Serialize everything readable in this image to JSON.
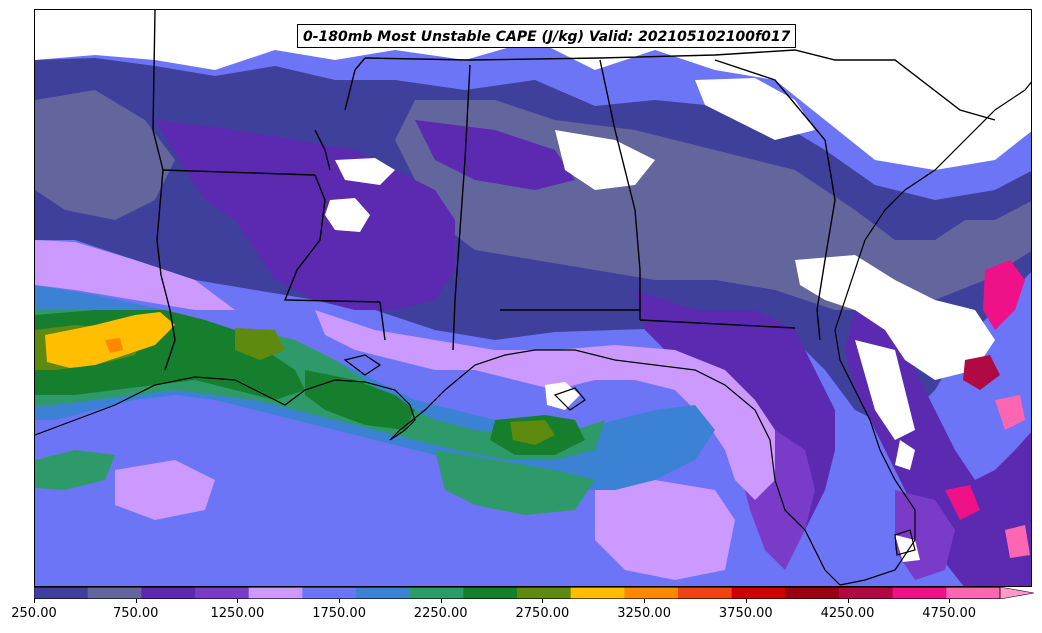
{
  "map": {
    "title": "0-180mb Most Unstable CAPE (J/kg) Valid: 202105102100f017",
    "region": "Southeastern United States and Gulf of Mexico"
  },
  "colorbar": {
    "ticks": [
      "250.00",
      "750.00",
      "1250.00",
      "1750.00",
      "2250.00",
      "2750.00",
      "3250.00",
      "3750.00",
      "4250.00",
      "4750.00"
    ],
    "tick_values": [
      250,
      750,
      1250,
      1750,
      2250,
      2750,
      3250,
      3750,
      4250,
      4750
    ],
    "range": [
      250,
      5000
    ],
    "extend": "max",
    "colors": [
      "#3f3f9c",
      "#63659d",
      "#5b2ab0",
      "#7a3cc8",
      "#cc99ff",
      "#6b75f5",
      "#3c82d4",
      "#2e9a6a",
      "#167f2e",
      "#5e8a10",
      "#ffbf00",
      "#ff8800",
      "#ee4411",
      "#cc0000",
      "#990011",
      "#b00a44",
      "#ee1188",
      "#ff66b2",
      "#ff99cc"
    ]
  },
  "chart_data": {
    "type": "heatmap",
    "title": "0-180mb Most Unstable CAPE (J/kg) Valid: 202105102100f017",
    "colorbar_ticks": [
      250,
      750,
      1250,
      1750,
      2250,
      2750,
      3250,
      3750,
      4250,
      4750
    ],
    "value_range": [
      250,
      5000
    ]
  }
}
